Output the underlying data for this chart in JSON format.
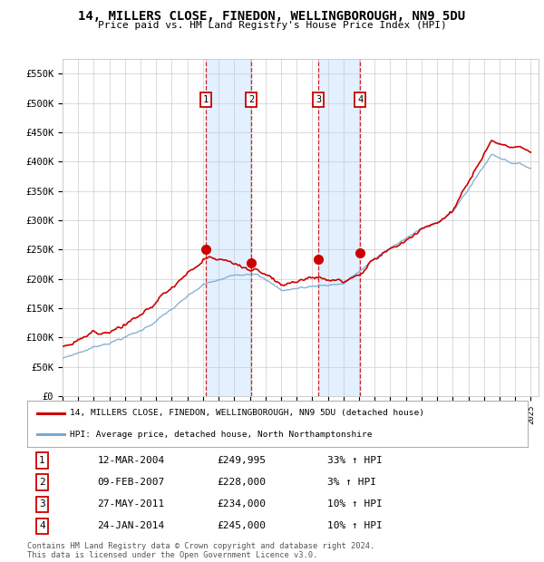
{
  "title": "14, MILLERS CLOSE, FINEDON, WELLINGBOROUGH, NN9 5DU",
  "subtitle": "Price paid vs. HM Land Registry's House Price Index (HPI)",
  "ylim": [
    0,
    575000
  ],
  "yticks": [
    0,
    50000,
    100000,
    150000,
    200000,
    250000,
    300000,
    350000,
    400000,
    450000,
    500000,
    550000
  ],
  "ytick_labels": [
    "£0",
    "£50K",
    "£100K",
    "£150K",
    "£200K",
    "£250K",
    "£300K",
    "£350K",
    "£400K",
    "£450K",
    "£500K",
    "£550K"
  ],
  "sales": [
    {
      "label": "1",
      "date": "12-MAR-2004",
      "date_num": 2004.19,
      "price": 249995,
      "pct": "33%",
      "dir": "↑"
    },
    {
      "label": "2",
      "date": "09-FEB-2007",
      "date_num": 2007.11,
      "price": 228000,
      "pct": "3%",
      "dir": "↑"
    },
    {
      "label": "3",
      "date": "27-MAY-2011",
      "date_num": 2011.4,
      "price": 234000,
      "pct": "10%",
      "dir": "↑"
    },
    {
      "label": "4",
      "date": "24-JAN-2014",
      "date_num": 2014.06,
      "price": 245000,
      "pct": "10%",
      "dir": "↑"
    }
  ],
  "legend_line1": "14, MILLERS CLOSE, FINEDON, WELLINGBOROUGH, NN9 5DU (detached house)",
  "legend_line2": "HPI: Average price, detached house, North Northamptonshire",
  "footer1": "Contains HM Land Registry data © Crown copyright and database right 2024.",
  "footer2": "This data is licensed under the Open Government Licence v3.0.",
  "red_color": "#cc0000",
  "blue_color": "#7aaad0",
  "shade_color": "#ddeeff",
  "grid_color": "#cccccc",
  "background_color": "#ffffff",
  "xlim_left": 1995,
  "xlim_right": 2025.5
}
